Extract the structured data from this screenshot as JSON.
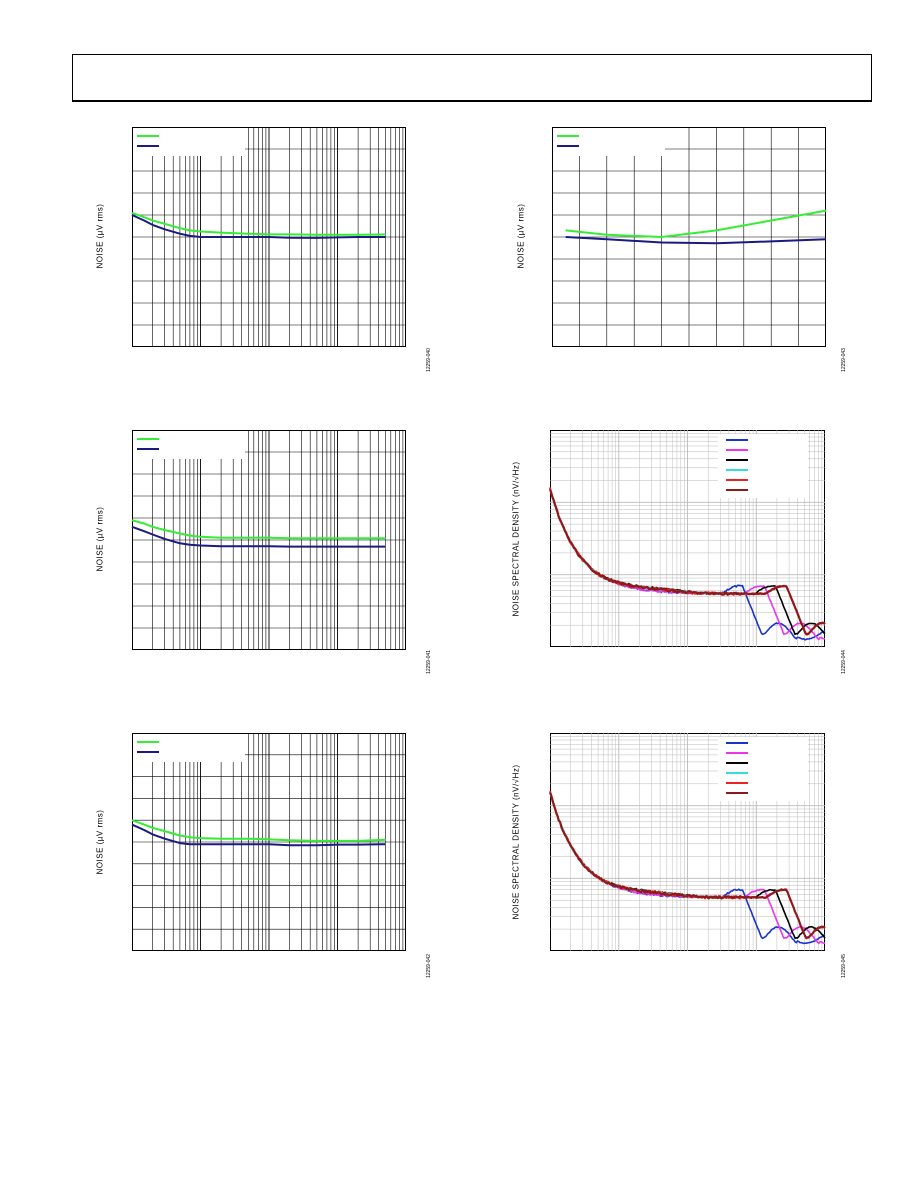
{
  "page": {
    "width": 918,
    "height": 1188
  },
  "panels": [
    {
      "id": "p1",
      "ylabel": "NOISE (µV rms)",
      "fig_id": "12259-040",
      "chart_data": {
        "type": "line",
        "x_scale": "log",
        "legend_position": "top-left",
        "grid": "log-x",
        "series": [
          {
            "name": "",
            "color": "#33ee33",
            "x": [
              10,
              15,
              20,
              30,
              50,
              70,
              100,
              200,
              500,
              1000,
              2000,
              5000,
              10000,
              20000,
              50000
            ],
            "y": [
              6.1,
              5.9,
              5.75,
              5.6,
              5.4,
              5.3,
              5.25,
              5.2,
              5.15,
              5.12,
              5.12,
              5.1,
              5.1,
              5.1,
              5.12
            ]
          },
          {
            "name": "",
            "color": "#1a1a80",
            "x": [
              10,
              15,
              20,
              30,
              50,
              70,
              100,
              200,
              500,
              1000,
              2000,
              5000,
              10000,
              20000,
              50000
            ],
            "y": [
              6.0,
              5.75,
              5.55,
              5.35,
              5.15,
              5.05,
              5.0,
              5.0,
              5.0,
              5.0,
              4.97,
              4.96,
              4.98,
              5.0,
              5.0
            ]
          }
        ],
        "ylim": [
          0,
          10
        ]
      }
    },
    {
      "id": "p2",
      "ylabel": "NOISE (µV rms)",
      "fig_id": "12259-043",
      "chart_data": {
        "type": "line",
        "x_scale": "linear",
        "legend_position": "top-left",
        "grid": "linear",
        "series": [
          {
            "name": "",
            "color": "#33ee33",
            "x": [
              0.5,
              2,
              4,
              6,
              8,
              10
            ],
            "y": [
              5.3,
              5.1,
              5.0,
              5.3,
              5.75,
              6.2
            ]
          },
          {
            "name": "",
            "color": "#1a1a80",
            "x": [
              0.5,
              2,
              4,
              6,
              8,
              10
            ],
            "y": [
              5.0,
              4.9,
              4.75,
              4.72,
              4.8,
              4.9
            ]
          }
        ],
        "xlim": [
          0,
          10
        ],
        "ylim": [
          0,
          10
        ]
      }
    },
    {
      "id": "p3",
      "ylabel": "NOISE (µV rms)",
      "fig_id": "12259-041",
      "chart_data": {
        "type": "line",
        "x_scale": "log",
        "legend_position": "top-left",
        "grid": "log-x",
        "series": [
          {
            "name": "",
            "color": "#33ee33",
            "x": [
              10,
              15,
              20,
              30,
              50,
              70,
              100,
              200,
              500,
              1000,
              2000,
              5000,
              10000,
              20000,
              50000
            ],
            "y": [
              5.9,
              5.75,
              5.6,
              5.45,
              5.3,
              5.2,
              5.15,
              5.1,
              5.1,
              5.1,
              5.08,
              5.08,
              5.08,
              5.08,
              5.08
            ]
          },
          {
            "name": "",
            "color": "#1a1a80",
            "x": [
              10,
              15,
              20,
              30,
              50,
              70,
              100,
              200,
              500,
              1000,
              2000,
              5000,
              10000,
              20000,
              50000
            ],
            "y": [
              5.6,
              5.4,
              5.25,
              5.05,
              4.85,
              4.78,
              4.75,
              4.72,
              4.72,
              4.72,
              4.7,
              4.7,
              4.7,
              4.7,
              4.7
            ]
          }
        ],
        "ylim": [
          0,
          10
        ]
      }
    },
    {
      "id": "p4",
      "ylabel": "NOISE SPECTRAL DENSITY (nV/√Hz)",
      "fig_id": "12259-044",
      "chart_data": {
        "type": "line",
        "x_scale": "log",
        "y_scale": "log",
        "legend_position": "top-right",
        "grid": "log-log",
        "series": [
          {
            "name": "",
            "color": "#1a33cc"
          },
          {
            "name": "",
            "color": "#ee33ee"
          },
          {
            "name": "",
            "color": "#000000"
          },
          {
            "name": "",
            "color": "#33dddd"
          },
          {
            "name": "",
            "color": "#ee2222"
          },
          {
            "name": "",
            "color": "#8b1a1a"
          }
        ]
      }
    },
    {
      "id": "p5",
      "ylabel": "NOISE (µV rms)",
      "fig_id": "12259-042",
      "chart_data": {
        "type": "line",
        "x_scale": "log",
        "legend_position": "top-left",
        "grid": "log-x",
        "series": [
          {
            "name": "",
            "color": "#33ee33",
            "x": [
              10,
              15,
              20,
              30,
              50,
              70,
              100,
              200,
              500,
              1000,
              2000,
              5000,
              10000,
              20000,
              50000
            ],
            "y": [
              6.0,
              5.8,
              5.65,
              5.5,
              5.3,
              5.22,
              5.18,
              5.15,
              5.15,
              5.12,
              5.08,
              5.05,
              5.05,
              5.05,
              5.1
            ]
          },
          {
            "name": "",
            "color": "#1a1a80",
            "x": [
              10,
              15,
              20,
              30,
              50,
              70,
              100,
              200,
              500,
              1000,
              2000,
              5000,
              10000,
              20000,
              50000
            ],
            "y": [
              5.8,
              5.55,
              5.35,
              5.15,
              4.95,
              4.9,
              4.9,
              4.9,
              4.9,
              4.9,
              4.85,
              4.85,
              4.88,
              4.88,
              4.9
            ]
          }
        ],
        "ylim": [
          0,
          10
        ]
      }
    },
    {
      "id": "p6",
      "ylabel": "NOISE SPECTRAL DENSITY (nV/√Hz)",
      "fig_id": "12259-045",
      "chart_data": {
        "type": "line",
        "x_scale": "log",
        "y_scale": "log",
        "legend_position": "top-right",
        "grid": "log-log",
        "series": [
          {
            "name": "",
            "color": "#1a33cc"
          },
          {
            "name": "",
            "color": "#ee33ee"
          },
          {
            "name": "",
            "color": "#000000"
          },
          {
            "name": "",
            "color": "#33dddd"
          },
          {
            "name": "",
            "color": "#ee2222"
          },
          {
            "name": "",
            "color": "#8b1a1a"
          }
        ]
      }
    }
  ]
}
